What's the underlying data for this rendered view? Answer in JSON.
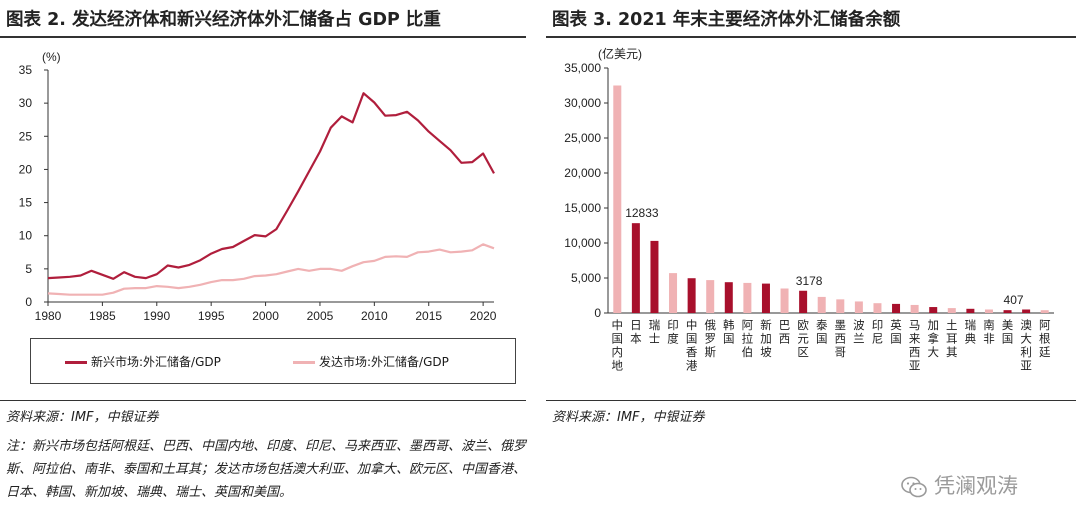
{
  "left": {
    "title": "图表 2. 发达经济体和新兴经济体外汇储备占 GDP 比重",
    "source": "资料来源：IMF，中银证券",
    "note": "注：新兴市场包括阿根廷、巴西、中国内地、印度、印尼、马来西亚、墨西哥、波兰、俄罗斯、阿拉伯、南非、泰国和土耳其；发达市场包括澳大利亚、加拿大、欧元区、中国香港、日本、韩国、新加坡、瑞典、瑞士、英国和美国。"
  },
  "right": {
    "title": "图表 3. 2021 年末主要经济体外汇储备余额",
    "source": "资料来源：IMF，中银证券"
  },
  "watermark": "凭澜观涛",
  "chart_data": [
    {
      "type": "line",
      "ylabel": "(%)",
      "ylim": [
        0,
        35
      ],
      "y_ticks": [
        0,
        5,
        10,
        15,
        20,
        25,
        30,
        35
      ],
      "xlim": [
        1980,
        2021
      ],
      "x_ticks": [
        1980,
        1985,
        1990,
        1995,
        2000,
        2005,
        2010,
        2015,
        2020
      ],
      "grid": false,
      "legend_position": "bottom",
      "x": [
        1980,
        1981,
        1982,
        1983,
        1984,
        1985,
        1986,
        1987,
        1988,
        1989,
        1990,
        1991,
        1992,
        1993,
        1994,
        1995,
        1996,
        1997,
        1998,
        1999,
        2000,
        2001,
        2002,
        2003,
        2004,
        2005,
        2006,
        2007,
        2008,
        2009,
        2010,
        2011,
        2012,
        2013,
        2014,
        2015,
        2016,
        2017,
        2018,
        2019,
        2020,
        2021
      ],
      "series": [
        {
          "name": "新兴市场:外汇储备/GDP",
          "color": "#b01e3c",
          "values": [
            3.6,
            3.7,
            3.8,
            4.0,
            4.7,
            4.1,
            3.5,
            4.5,
            3.8,
            3.6,
            4.2,
            5.5,
            5.2,
            5.6,
            6.3,
            7.3,
            8.0,
            8.3,
            9.2,
            10.1,
            9.9,
            11.0,
            13.8,
            16.7,
            19.7,
            22.7,
            26.3,
            28.0,
            27.1,
            31.5,
            30.1,
            28.1,
            28.2,
            28.7,
            27.4,
            25.7,
            24.3,
            22.9,
            21.0,
            21.1,
            22.4,
            19.4
          ]
        },
        {
          "name": "发达市场:外汇储备/GDP",
          "color": "#f0b2b4",
          "values": [
            1.3,
            1.2,
            1.1,
            1.1,
            1.1,
            1.1,
            1.4,
            2.0,
            2.1,
            2.1,
            2.4,
            2.3,
            2.1,
            2.3,
            2.6,
            3.0,
            3.3,
            3.3,
            3.5,
            3.9,
            4.0,
            4.2,
            4.6,
            5.0,
            4.7,
            5.0,
            5.0,
            4.7,
            5.4,
            6.0,
            6.2,
            6.8,
            6.9,
            6.8,
            7.5,
            7.6,
            7.9,
            7.5,
            7.6,
            7.8,
            8.7,
            8.1
          ]
        }
      ]
    },
    {
      "type": "bar",
      "ylabel": "(亿美元)",
      "ylim": [
        0,
        35000
      ],
      "y_ticks": [
        0,
        5000,
        10000,
        15000,
        20000,
        25000,
        30000,
        35000
      ],
      "y_tick_labels": [
        "0",
        "5,000",
        "10,000",
        "15,000",
        "20,000",
        "25,000",
        "30,000",
        "35,000"
      ],
      "grid": false,
      "categories": [
        "中国内地",
        "日本",
        "瑞士",
        "印度",
        "中国香港",
        "俄罗斯",
        "韩国",
        "阿拉伯",
        "新加坡",
        "巴西",
        "欧元区",
        "泰国",
        "墨西哥",
        "波兰",
        "印尼",
        "英国",
        "马来西亚",
        "加拿大",
        "土耳其",
        "瑞典",
        "南非",
        "美国",
        "澳大利亚",
        "阿根廷"
      ],
      "values": [
        32502,
        12833,
        10300,
        5700,
        4969,
        4700,
        4400,
        4300,
        4200,
        3500,
        3178,
        2300,
        1950,
        1650,
        1400,
        1300,
        1150,
        850,
        700,
        600,
        500,
        407,
        500,
        400
      ],
      "colors": [
        "#f0b2b4",
        "#a8102c",
        "#a8102c",
        "#f0b2b4",
        "#a8102c",
        "#f0b2b4",
        "#a8102c",
        "#f0b2b4",
        "#a8102c",
        "#f0b2b4",
        "#a8102c",
        "#f0b2b4",
        "#f0b2b4",
        "#f0b2b4",
        "#f0b2b4",
        "#a8102c",
        "#f0b2b4",
        "#a8102c",
        "#f0b2b4",
        "#a8102c",
        "#f0b2b4",
        "#a8102c",
        "#a8102c",
        "#f0b2b4"
      ],
      "data_labels": {
        "1": "12833",
        "10": "3178",
        "21": "407"
      }
    }
  ]
}
